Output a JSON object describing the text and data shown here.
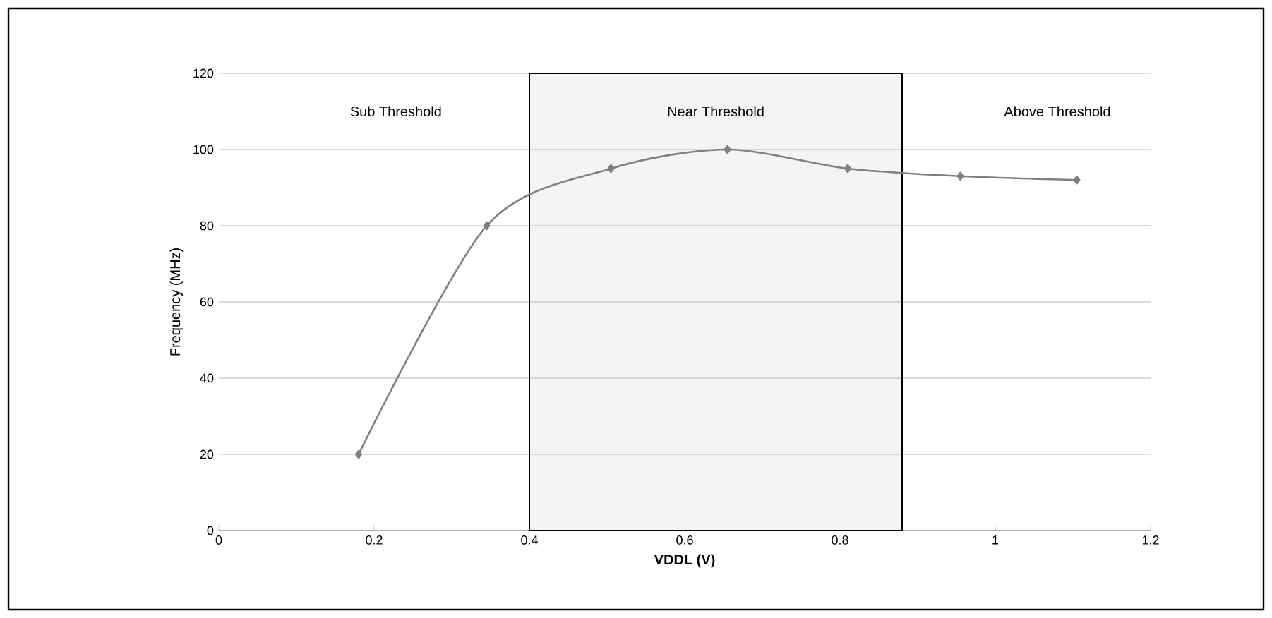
{
  "chart_data": {
    "type": "line",
    "xlabel": "VDDL (V)",
    "ylabel": "Frequency (MHz)",
    "x": [
      0.18,
      0.345,
      0.505,
      0.655,
      0.81,
      0.955,
      1.105
    ],
    "series": [
      {
        "color": "#808080",
        "values": [
          20,
          80,
          95,
          100,
          95,
          93,
          92
        ]
      }
    ],
    "xlim": [
      0,
      1.2
    ],
    "ylim": [
      0,
      120
    ],
    "xticks": [
      0,
      0.2,
      0.4,
      0.6,
      0.8,
      1,
      1.2
    ],
    "yticks": [
      0,
      20,
      40,
      60,
      80,
      100,
      120
    ],
    "bands": [
      {
        "axis": "x",
        "from": 0.4,
        "to": 0.88,
        "label": "Near Threshold",
        "color": "#f4f4f4"
      }
    ],
    "annotations": [
      "Sub Threshold",
      "Above Threshold"
    ],
    "grid": "y",
    "marker": "diamond",
    "line_style": "solid"
  }
}
